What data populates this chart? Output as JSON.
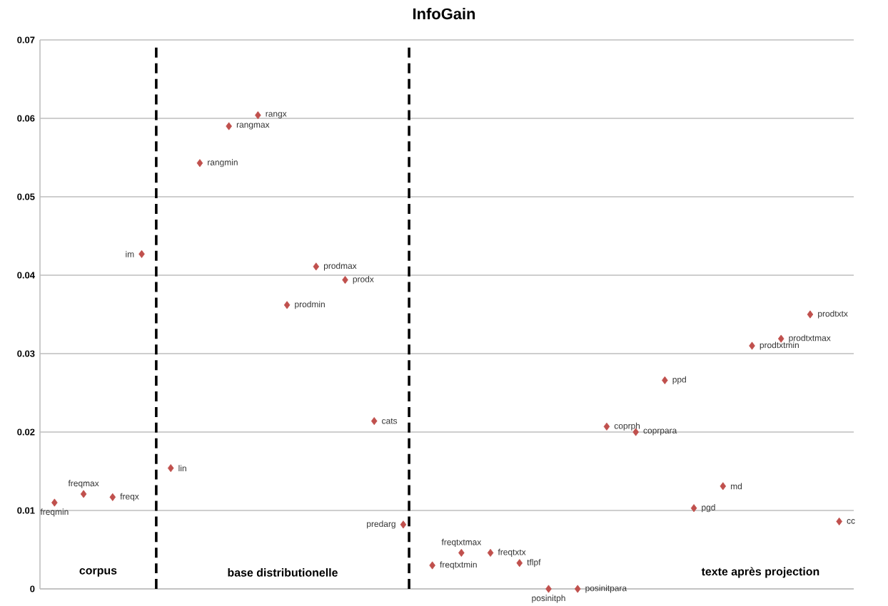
{
  "chart_data": {
    "type": "scatter",
    "title": "InfoGain",
    "categories": [
      null,
      null,
      null,
      null,
      null,
      null,
      null,
      null,
      null,
      null,
      null,
      null,
      null,
      null,
      null,
      null,
      null,
      null,
      null,
      null,
      null,
      null,
      null,
      null,
      null,
      null,
      null,
      null
    ],
    "values": [
      0.011,
      0.0121,
      0.0117,
      0.0427,
      0.0154,
      0.0543,
      0.059,
      0.0604,
      0.0362,
      0.0411,
      0.0394,
      0.0214,
      0.0082,
      0.003,
      0.0046,
      0.0046,
      0.0033,
      0.0,
      0.0,
      0.0207,
      0.02,
      0.0266,
      0.0103,
      0.0131,
      0.031,
      0.0319,
      0.035,
      0.0086
    ],
    "color": "#c0504d",
    "marker": "diamond",
    "ylim": [
      0,
      0.07
    ],
    "yticks": [
      0,
      0.01,
      0.02,
      0.03,
      0.04,
      0.05,
      0.06,
      0.07
    ],
    "grid": "y",
    "tick_labels": "y",
    "annotations": [
      "freqmin",
      "freqmax",
      "freqx",
      "im",
      "lin",
      "rangmin",
      "rangmax",
      "rangx",
      "prodmin",
      "prodmax",
      "prodx",
      "cats",
      "predarg",
      "freqtxtmin",
      "freqtxtmax",
      "freqtxtx",
      "tflpf",
      "posinitph",
      "posinitpara",
      "coprph",
      "coprpara",
      "ppd",
      "pgd",
      "md",
      "prodtxtmin",
      "prodtxtmax",
      "prodtxtx",
      "cc",
      "corpus",
      "base distributionelle",
      "texte après projection"
    ]
  }
}
